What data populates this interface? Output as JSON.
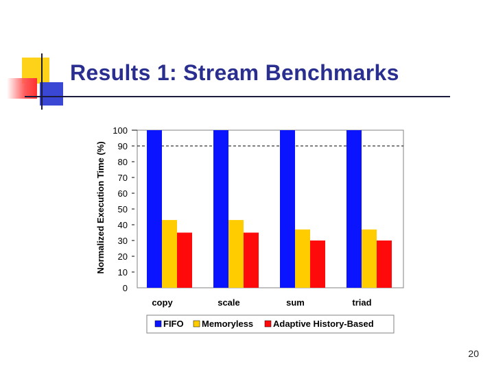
{
  "slide": {
    "title": "Results 1: Stream Benchmarks",
    "page_number": "20"
  },
  "colors": {
    "title": "#2a2f8f",
    "fifo": "#0a14ff",
    "memoryless": "#ffcc00",
    "adaptive": "#ff0a0a"
  },
  "chart_data": {
    "type": "bar",
    "categories": [
      "copy",
      "scale",
      "sum",
      "triad"
    ],
    "series": [
      {
        "name": "FIFO",
        "color": "#0a14ff",
        "values": [
          100,
          100,
          100,
          100
        ]
      },
      {
        "name": "Memoryless",
        "color": "#ffcc00",
        "values": [
          43,
          43,
          37,
          37
        ]
      },
      {
        "name": "Adaptive History-Based",
        "color": "#ff0a0a",
        "values": [
          35,
          35,
          30,
          30
        ]
      }
    ],
    "ylabel": "Normalized Execution Time (%)",
    "xlabel": "",
    "ylim": [
      0,
      100
    ],
    "yticks": [
      0,
      10,
      20,
      30,
      40,
      50,
      60,
      70,
      80,
      90,
      100
    ],
    "yticks_labels": [
      "0",
      "10",
      "20",
      "30",
      "40",
      "50",
      "60",
      "70",
      "80",
      "90",
      "100"
    ],
    "reference_line": 90,
    "legend_position": "bottom",
    "grid": false
  }
}
